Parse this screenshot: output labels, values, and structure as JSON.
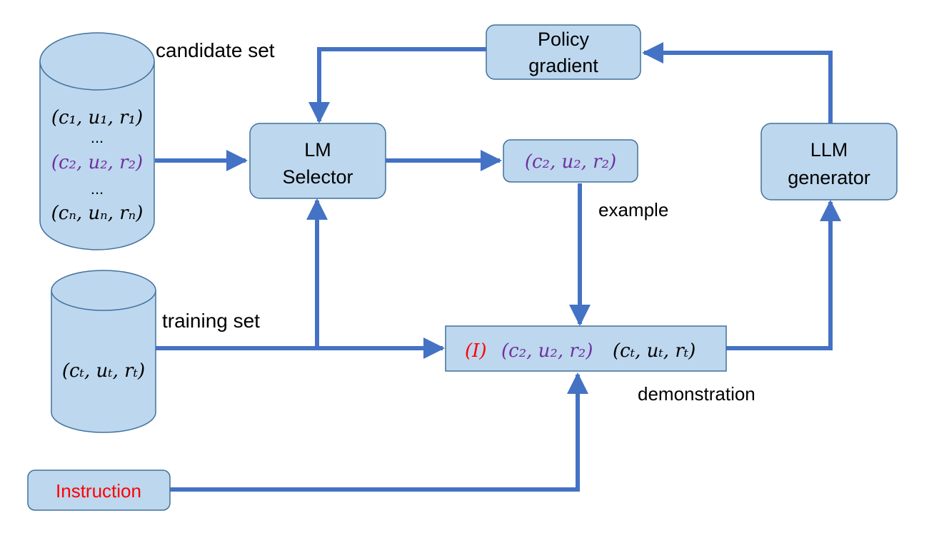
{
  "labels": {
    "candidate_set": "candidate set",
    "training_set": "training set",
    "example": "example",
    "demonstration": "demonstration"
  },
  "boxes": {
    "policy_line1": "Policy",
    "policy_line2": "gradient",
    "selector_line1": "LM",
    "selector_line2": "Selector",
    "generator_line1": "LLM",
    "generator_line2": "generator",
    "instruction": "Instruction"
  },
  "candidate_items": {
    "item1": "(c₁, u₁, r₁)",
    "dots1": "...",
    "item2": "(c₂, u₂, r₂)",
    "dots2": "...",
    "itemn": "(cₙ, uₙ, rₙ)"
  },
  "training_item": "(cₜ, uₜ, rₜ)",
  "selected_example": "(c₂, u₂, r₂)",
  "demonstration_parts": {
    "instruction_token": "(I)",
    "example": "(c₂, u₂, r₂)",
    "target": "(cₜ, uₜ, rₜ)"
  },
  "colors": {
    "box_fill": "#bdd7ee",
    "box_stroke": "#41719c",
    "arrow": "#4472c4",
    "purple": "#7030a0",
    "red": "#ff0000",
    "text": "#000000"
  }
}
